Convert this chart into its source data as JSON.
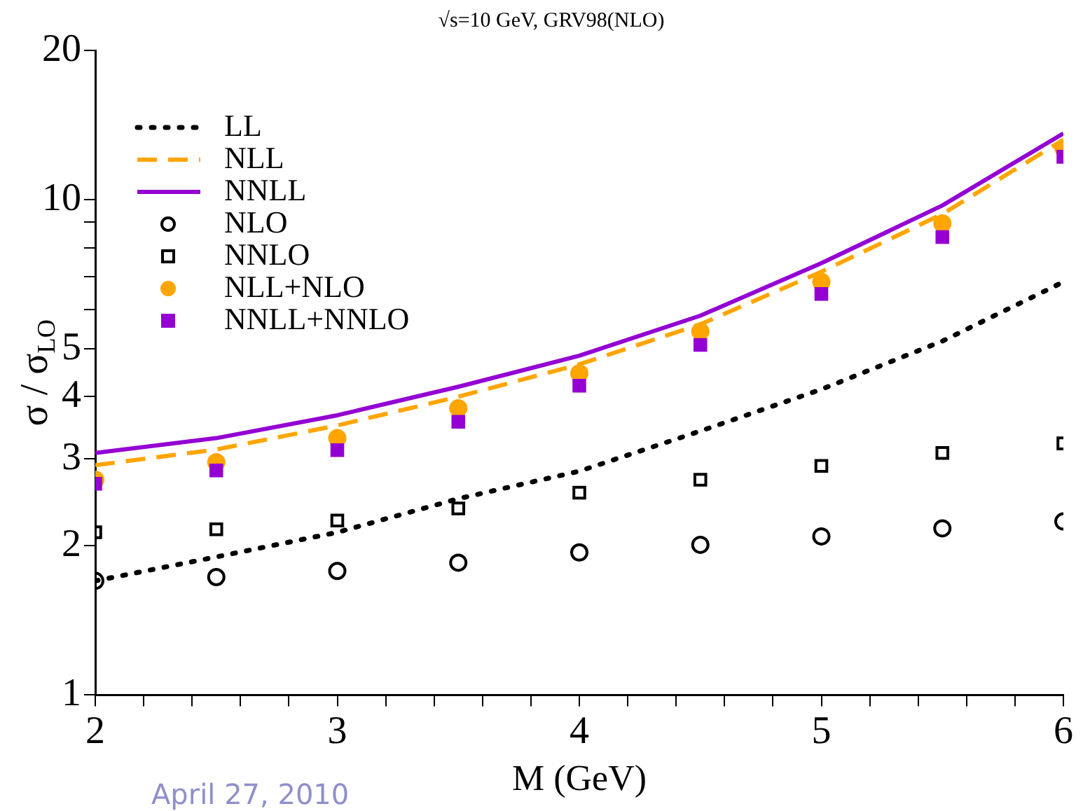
{
  "chart_data": {
    "type": "line",
    "title": "√s=10 GeV, GRV98(NLO)",
    "xlabel": "M (GeV)",
    "ylabel": "σ / σ$_{LO}$",
    "x": [
      2,
      2.5,
      3,
      3.5,
      4,
      4.5,
      5,
      5.5,
      6
    ],
    "series": [
      {
        "name": "LL",
        "type": "line",
        "line_style": "dotted",
        "marker": "none",
        "color": "#000000",
        "values": [
          1.7,
          1.9,
          2.13,
          2.49,
          2.83,
          3.41,
          4.14,
          5.18,
          6.82
        ]
      },
      {
        "name": "NLL",
        "type": "line",
        "line_style": "dashed",
        "marker": "none",
        "color": "#ffa500",
        "values": [
          2.91,
          3.13,
          3.5,
          4.0,
          4.65,
          5.6,
          7.15,
          9.35,
          13.2
        ]
      },
      {
        "name": "NNLL",
        "type": "line",
        "line_style": "solid",
        "marker": "none",
        "color": "#9400d3",
        "values": [
          3.08,
          3.3,
          3.67,
          4.19,
          4.84,
          5.83,
          7.44,
          9.73,
          13.6
        ]
      },
      {
        "name": "NLO",
        "type": "scatter",
        "marker": "circle",
        "color": "#000000",
        "values": [
          1.7,
          1.73,
          1.78,
          1.85,
          1.94,
          2.01,
          2.09,
          2.17,
          2.24
        ]
      },
      {
        "name": "NNLO",
        "type": "scatter",
        "marker": "square",
        "color": "#000000",
        "values": [
          2.13,
          2.16,
          2.25,
          2.38,
          2.56,
          2.72,
          2.9,
          3.08,
          3.22
        ]
      },
      {
        "name": "NLL+NLO",
        "type": "scatter",
        "marker": "circle",
        "color": "#ffa500",
        "values": [
          2.72,
          2.95,
          3.3,
          3.79,
          4.46,
          5.42,
          6.82,
          8.95,
          12.7
        ]
      },
      {
        "name": "NNLL+NNLO",
        "type": "scatter",
        "marker": "square",
        "color": "#9400d3",
        "values": [
          2.67,
          2.84,
          3.12,
          3.56,
          4.21,
          5.09,
          6.45,
          8.4,
          12.2
        ]
      }
    ],
    "log": "y",
    "xlim": [
      2,
      6
    ],
    "ylim": [
      1,
      20
    ],
    "xticks": [
      2,
      {
        "value": 2.2,
        "label": null
      },
      {
        "value": 2.4,
        "label": null
      },
      {
        "value": 2.6,
        "label": null
      },
      {
        "value": 2.8,
        "label": null
      },
      3,
      {
        "value": 3.2,
        "label": null
      },
      {
        "value": 3.4,
        "label": null
      },
      {
        "value": 3.6,
        "label": null
      },
      {
        "value": 3.8,
        "label": null
      },
      4,
      {
        "value": 4.2,
        "label": null
      },
      {
        "value": 4.4,
        "label": null
      },
      {
        "value": 4.6,
        "label": null
      },
      {
        "value": 4.8,
        "label": null
      },
      5,
      {
        "value": 5.2,
        "label": null
      },
      {
        "value": 5.4,
        "label": null
      },
      {
        "value": 5.6,
        "label": null
      },
      {
        "value": 5.8,
        "label": null
      },
      6
    ],
    "yticks": [
      1,
      2,
      3,
      4,
      5,
      {
        "value": 6,
        "label": null
      },
      {
        "value": 7,
        "label": null
      },
      {
        "value": 8,
        "label": null
      },
      {
        "value": 9,
        "label": null
      },
      10,
      20
    ],
    "grid": false,
    "legend": "top left",
    "annotations": [
      "April 27, 2010"
    ]
  }
}
